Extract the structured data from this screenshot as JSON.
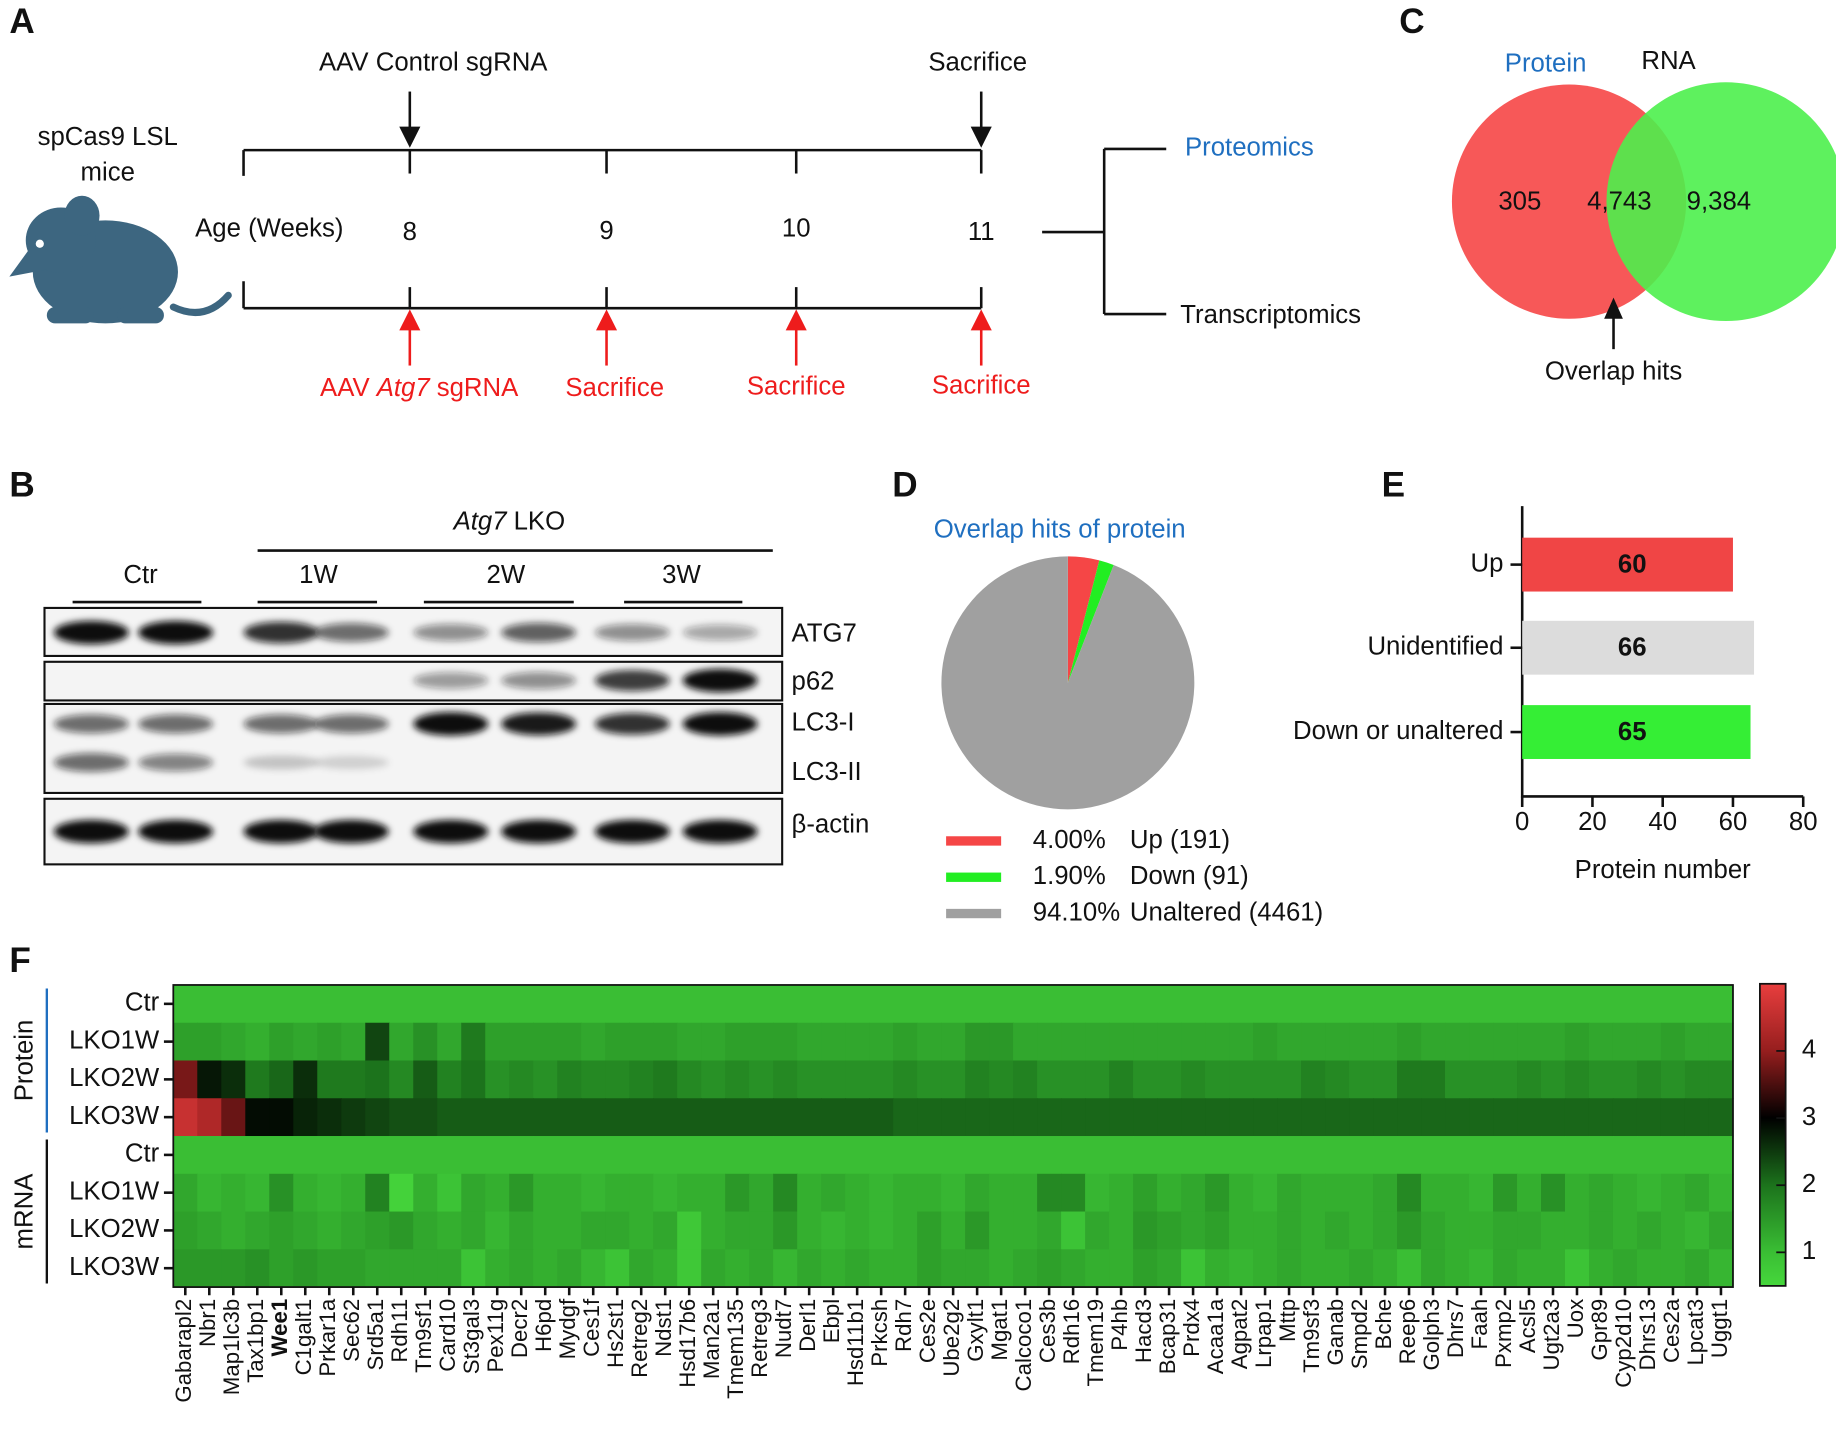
{
  "panel_labels": [
    "A",
    "B",
    "C",
    "D",
    "E",
    "F"
  ],
  "timeline": {
    "mice": [
      "spCas9 LSL",
      "mice"
    ],
    "age_label": "Age (Weeks)",
    "weeks": [
      8,
      9,
      10,
      11
    ],
    "control": "AAV Control sgRNA",
    "control_end": "Sacrifice",
    "treatment": {
      "pre": "AAV",
      "gene": "Atg7",
      "post": "sgRNA"
    },
    "treatment_ends": [
      "Sacrifice",
      "Sacrifice",
      "Sacrifice"
    ],
    "outputs": [
      "Proteomics",
      "Transcriptomics"
    ]
  },
  "venn": {
    "sets": [
      "Protein",
      "RNA"
    ],
    "regions": [
      "305",
      "4,743",
      "9,384"
    ],
    "annotation": "Overlap hits"
  },
  "western_blot": {
    "header": {
      "gene": "Atg7",
      "rest": "LKO"
    },
    "groups": [
      "Ctr",
      "1W",
      "2W",
      "3W"
    ],
    "bands": [
      "ATG7",
      "p62",
      "LC3-I",
      "LC3-II",
      "β-actin"
    ]
  },
  "chart_data": [
    {
      "type": "pie",
      "title": "Overlap hits of protein",
      "categories": [
        "Up (191)",
        "Down (91)",
        "Unaltered (4461)"
      ],
      "values": [
        4.0,
        1.9,
        94.1
      ],
      "value_labels": [
        "4.00%",
        "1.90%",
        "94.10%"
      ],
      "colors": [
        "#f54646",
        "#22ee22",
        "#a0a0a0"
      ]
    },
    {
      "type": "bar",
      "orientation": "horizontal",
      "categories": [
        "Up",
        "Unidentified",
        "Down or unaltered"
      ],
      "values": [
        60,
        66,
        65
      ],
      "colors": [
        "#f04545",
        "#dcdcdc",
        "#35ee35"
      ],
      "xlim": [
        0,
        80
      ],
      "xticks": [
        0,
        20,
        40,
        60,
        80
      ],
      "xlabel": "Protein number"
    },
    {
      "type": "heatmap",
      "groups": [
        "Protein",
        "mRNA"
      ],
      "rows": [
        "Ctr",
        "LKO1W",
        "LKO2W",
        "LKO3W",
        "Ctr",
        "LKO1W",
        "LKO2W",
        "LKO3W"
      ],
      "columns": [
        "Gabarapl2",
        "Nbr1",
        "Map1lc3b",
        "Tax1bp1",
        "Wee1",
        "C1galt1",
        "Prkar1a",
        "Sec62",
        "Srd5a1",
        "Rdh11",
        "Tm9sf1",
        "Card10",
        "St3gal3",
        "Pex11g",
        "Decr2",
        "H6pd",
        "Mydgf",
        "Ces1f",
        "Hs2st1",
        "Retreg2",
        "Ndst1",
        "Hsd17b6",
        "Man2a1",
        "Tmem135",
        "Retreg3",
        "Nudt7",
        "Derl1",
        "Ebpl",
        "Hsd11b1",
        "Prkcsh",
        "Rdh7",
        "Ces2e",
        "Ube2g2",
        "Gxylt1",
        "Mgat1",
        "Calcoco1",
        "Ces3b",
        "Rdh16",
        "Tmem19",
        "P4hb",
        "Hacd3",
        "Bcap31",
        "Prdx4",
        "Acaa1a",
        "Agpat2",
        "Lrpap1",
        "Mttp",
        "Tm9sf3",
        "Ganab",
        "Smpd2",
        "Bche",
        "Reep6",
        "Golph3",
        "Dhrs7",
        "Faah",
        "Pxmp2",
        "Acsl5",
        "Ugt2a3",
        "Uox",
        "Gpr89",
        "Cyp2d10",
        "Dhrs13",
        "Ces2a",
        "Lpcat3",
        "Uggt1"
      ],
      "bold_columns": [
        "Wee1"
      ],
      "values": [
        [
          1,
          1,
          1,
          1,
          1,
          1,
          1,
          1,
          1,
          1,
          1,
          1,
          1,
          1,
          1,
          1,
          1,
          1,
          1,
          1,
          1,
          1,
          1,
          1,
          1,
          1,
          1,
          1,
          1,
          1,
          1,
          1,
          1,
          1,
          1,
          1,
          1,
          1,
          1,
          1,
          1,
          1,
          1,
          1,
          1,
          1,
          1,
          1,
          1,
          1,
          1,
          1,
          1,
          1,
          1,
          1,
          1,
          1,
          1,
          1,
          1,
          1,
          1,
          1,
          1
        ],
        [
          1.4,
          1.4,
          1.3,
          1.2,
          1.4,
          1.3,
          1.4,
          1.3,
          2.4,
          1.3,
          1.6,
          1.3,
          1.9,
          1.4,
          1.4,
          1.4,
          1.4,
          1.3,
          1.4,
          1.4,
          1.4,
          1.3,
          1.3,
          1.4,
          1.4,
          1.4,
          1.3,
          1.3,
          1.3,
          1.3,
          1.4,
          1.3,
          1.3,
          1.5,
          1.5,
          1.3,
          1.3,
          1.3,
          1.3,
          1.3,
          1.3,
          1.3,
          1.3,
          1.3,
          1.3,
          1.4,
          1.3,
          1.3,
          1.3,
          1.3,
          1.3,
          1.4,
          1.3,
          1.3,
          1.3,
          1.3,
          1.3,
          1.3,
          1.4,
          1.3,
          1.3,
          1.3,
          1.4,
          1.3,
          1.3
        ],
        [
          3.8,
          2.8,
          2.6,
          1.9,
          2.1,
          2.6,
          1.9,
          1.9,
          2.0,
          1.7,
          2.2,
          1.8,
          2.0,
          1.6,
          1.7,
          1.6,
          1.8,
          1.7,
          1.7,
          1.8,
          1.9,
          1.7,
          1.6,
          1.7,
          1.6,
          1.7,
          1.6,
          1.6,
          1.6,
          1.6,
          1.7,
          1.6,
          1.6,
          1.8,
          1.7,
          1.8,
          1.6,
          1.6,
          1.6,
          1.8,
          1.6,
          1.6,
          1.7,
          1.6,
          1.6,
          1.6,
          1.6,
          1.8,
          1.7,
          1.6,
          1.6,
          1.9,
          1.9,
          1.6,
          1.6,
          1.6,
          1.7,
          1.6,
          1.7,
          1.6,
          1.6,
          1.7,
          1.6,
          1.7,
          1.7
        ],
        [
          4.6,
          4.3,
          3.7,
          2.9,
          2.9,
          2.7,
          2.6,
          2.5,
          2.4,
          2.3,
          2.3,
          2.2,
          2.2,
          2.2,
          2.2,
          2.2,
          2.2,
          2.2,
          2.2,
          2.2,
          2.2,
          2.2,
          2.2,
          2.2,
          2.2,
          2.2,
          2.2,
          2.2,
          2.2,
          2.2,
          2.1,
          2.1,
          2.1,
          2.1,
          2.1,
          2.1,
          2.1,
          2.1,
          2.1,
          2.1,
          2.1,
          2.1,
          2.1,
          2.1,
          2.1,
          2.1,
          2.1,
          2.1,
          2.1,
          2.1,
          2.1,
          2.1,
          2.1,
          2.1,
          2.1,
          2.1,
          2.1,
          2.1,
          2.1,
          2.1,
          2.1,
          2.1,
          2.1,
          2.1,
          2.1
        ],
        [
          1,
          1,
          1,
          1,
          1,
          1,
          1,
          1,
          1,
          1,
          1,
          1,
          1,
          1,
          1,
          1,
          1,
          1,
          1,
          1,
          1,
          1,
          1,
          1,
          1,
          1,
          1,
          1,
          1,
          1,
          1,
          1,
          1,
          1,
          1,
          1,
          1,
          1,
          1,
          1,
          1,
          1,
          1,
          1,
          1,
          1,
          1,
          1,
          1,
          1,
          1,
          1,
          1,
          1,
          1,
          1,
          1,
          1,
          1,
          1,
          1,
          1,
          1,
          1,
          1
        ],
        [
          1.3,
          1.1,
          1.2,
          1.1,
          1.6,
          1.2,
          1.1,
          1.2,
          1.8,
          0.6,
          1.2,
          0.9,
          1.3,
          1.2,
          1.5,
          1.2,
          1.2,
          1.1,
          1.2,
          1.2,
          1.1,
          1.2,
          1.2,
          1.5,
          1.3,
          1.7,
          1.2,
          1.3,
          1.2,
          1.1,
          1.2,
          1.2,
          1.1,
          1.3,
          1.2,
          1.2,
          1.7,
          1.7,
          1.1,
          1.2,
          1.4,
          1.2,
          1.3,
          1.5,
          1.2,
          1.1,
          1.3,
          1.2,
          1.2,
          1.2,
          1.3,
          1.7,
          1.2,
          1.2,
          1.1,
          1.5,
          1.2,
          1.6,
          1.2,
          1.3,
          1.2,
          1.1,
          1.2,
          1.3,
          1.1
        ],
        [
          1.4,
          1.3,
          1.2,
          1.3,
          1.4,
          1.3,
          1.2,
          1.3,
          1.4,
          1.5,
          1.3,
          1.2,
          1.3,
          1.1,
          1.3,
          1.2,
          1.2,
          1.3,
          1.3,
          1.2,
          1.3,
          0.8,
          1.2,
          1.3,
          1.3,
          1.5,
          1.2,
          1.1,
          1.2,
          1.1,
          1.2,
          1.4,
          1.2,
          1.5,
          1.2,
          1.2,
          1.3,
          0.9,
          1.3,
          1.2,
          1.5,
          1.4,
          1.3,
          1.4,
          1.2,
          1.2,
          1.3,
          1.2,
          1.3,
          1.2,
          1.3,
          1.5,
          1.3,
          1.2,
          1.2,
          1.3,
          1.3,
          1.2,
          1.2,
          1.3,
          1.2,
          1.3,
          1.2,
          1.1,
          1.3
        ],
        [
          1.5,
          1.5,
          1.5,
          1.6,
          1.4,
          1.5,
          1.4,
          1.4,
          1.3,
          1.3,
          1.3,
          1.3,
          0.9,
          1.2,
          1.3,
          1.2,
          1.3,
          1.1,
          0.9,
          1.3,
          1.2,
          0.8,
          1.3,
          1.2,
          1.3,
          1.1,
          1.3,
          1.2,
          1.3,
          1.2,
          1.2,
          1.4,
          1.3,
          1.3,
          1.2,
          1.3,
          1.4,
          1.3,
          1.2,
          1.2,
          1.4,
          1.3,
          0.9,
          1.2,
          1.1,
          1.2,
          1.3,
          1.2,
          1.2,
          1.3,
          1.2,
          1.0,
          1.3,
          1.2,
          1.1,
          1.3,
          1.2,
          1.2,
          0.9,
          1.2,
          1.3,
          1.2,
          1.2,
          1.3,
          1.1
        ]
      ],
      "zlim": [
        0.5,
        5.0
      ],
      "zticks": [
        1,
        2,
        3,
        4
      ]
    }
  ]
}
